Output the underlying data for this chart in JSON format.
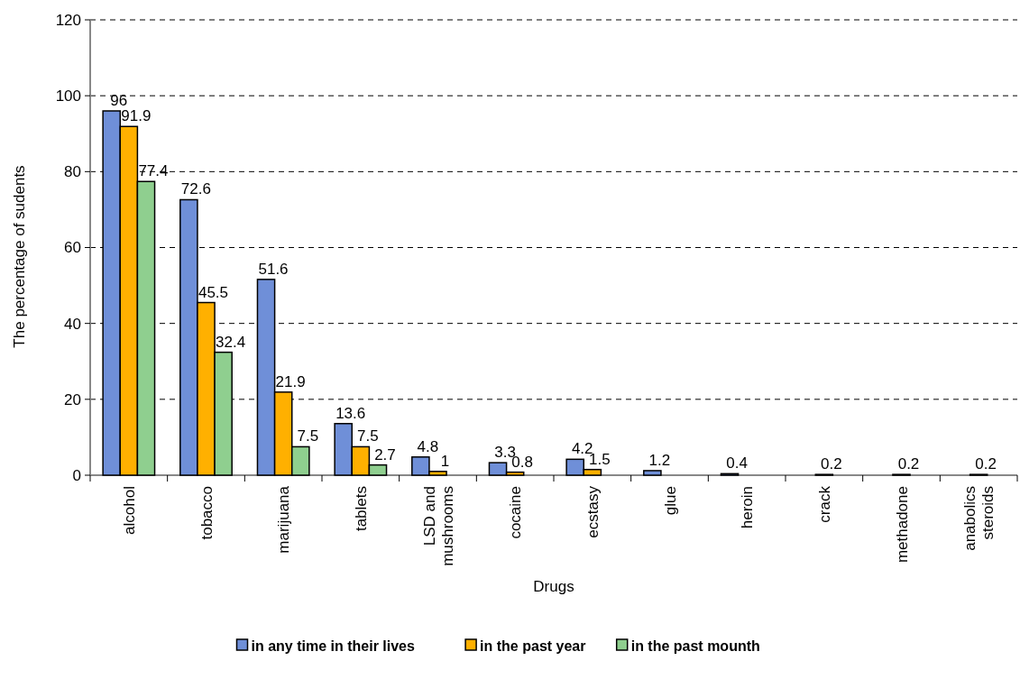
{
  "chart_data": {
    "type": "bar",
    "xlabel": "Drugs",
    "ylabel": "The percentage of sudents",
    "categories": [
      "alcohol",
      "tobacco",
      "marijuana",
      "tablets",
      "LSD and mushrooms",
      "cocaine",
      "ecstasy",
      "glue",
      "heroin",
      "crack",
      "methadone",
      "anabolics steroids"
    ],
    "series": [
      {
        "name": "in any time in their lives",
        "color": "#6f8fd8",
        "values": [
          96,
          72.6,
          51.6,
          13.6,
          4.8,
          3.3,
          4.2,
          1.2,
          0.4,
          null,
          null,
          null
        ]
      },
      {
        "name": "in the past year",
        "color": "#ffb000",
        "values": [
          91.9,
          45.5,
          21.9,
          7.5,
          1,
          0.8,
          1.5,
          null,
          null,
          0.2,
          0.2,
          0.2
        ]
      },
      {
        "name": "in the past mounth",
        "color": "#8fcf8f",
        "values": [
          77.4,
          32.4,
          7.5,
          2.7,
          null,
          null,
          null,
          null,
          null,
          null,
          null,
          null
        ]
      }
    ],
    "ylim": [
      0,
      120
    ],
    "yticks": [
      0,
      20,
      40,
      60,
      80,
      100,
      120
    ],
    "grid": "y",
    "data_labels": true,
    "legend": "bottom"
  }
}
